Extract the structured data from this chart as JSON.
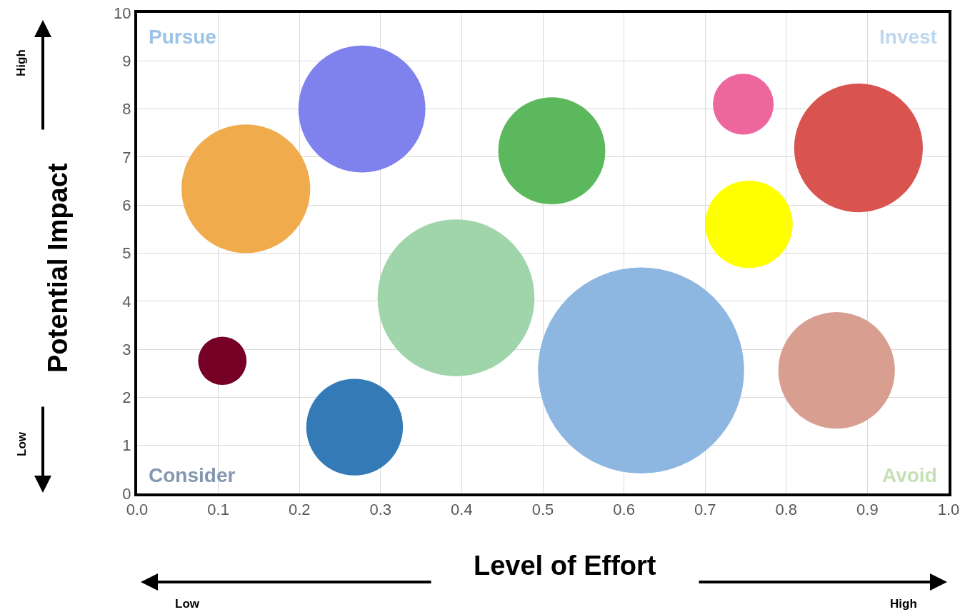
{
  "chart_data": {
    "type": "bubble",
    "xlabel": "Level of Effort",
    "ylabel": "Potential Impact",
    "x": [
      0.134,
      0.277,
      0.511,
      0.747,
      0.889,
      0.754,
      0.393,
      0.621,
      0.105,
      0.268,
      0.862
    ],
    "values": [
      6.34,
      8.0,
      7.13,
      8.1,
      7.19,
      5.6,
      4.07,
      2.56,
      2.76,
      1.38,
      2.56
    ],
    "sizes": [
      0.39,
      0.38,
      0.27,
      0.087,
      0.39,
      0.18,
      0.58,
      1,
      0.055,
      0.22,
      0.32
    ],
    "colors": [
      "#f0ab4c",
      "#7f82ec",
      "#5cb85c",
      "#ed679d",
      "#d9534f",
      "#ffff00",
      "#a0d5ab",
      "#8db6e0",
      "#760026",
      "#347ab7",
      "#d89f91"
    ],
    "xlim": [
      0,
      1
    ],
    "xticks": [
      {
        "value": 0,
        "label": "0.0"
      },
      0.1,
      0.2,
      0.3,
      0.4,
      0.5,
      0.6,
      0.7,
      0.8,
      0.9,
      {
        "value": 1,
        "label": "1.0"
      }
    ],
    "ylim": [
      0,
      10
    ],
    "yticks": [
      0,
      1,
      2,
      3,
      4,
      5,
      6,
      7,
      8,
      9,
      10
    ],
    "grid": true,
    "annotations": [
      "Pursue",
      "Invest",
      "Consider",
      "Avoid",
      "High",
      "Low",
      "Low",
      "High"
    ]
  }
}
